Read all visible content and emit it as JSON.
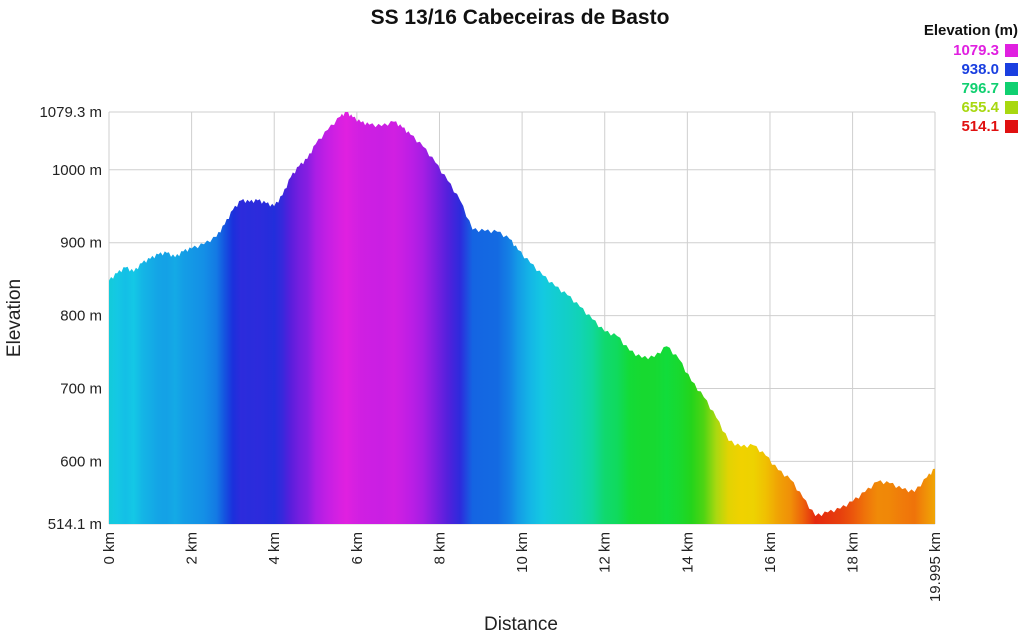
{
  "chart_data": {
    "type": "area",
    "title": "SS 13/16 Cabeceiras de Basto",
    "xlabel": "Distance",
    "ylabel": "Elevation",
    "xlim": [
      0,
      19.995
    ],
    "ylim": [
      514.1,
      1079.3
    ],
    "x_ticks": [
      0,
      2,
      4,
      6,
      8,
      10,
      12,
      14,
      16,
      18,
      19.995
    ],
    "x_tick_labels": [
      "0 km",
      "2 km",
      "4 km",
      "6 km",
      "8 km",
      "10 km",
      "12 km",
      "14 km",
      "16 km",
      "18 km",
      "19.995 km"
    ],
    "y_ticks": [
      514.1,
      600,
      700,
      800,
      900,
      1000,
      1079.3
    ],
    "y_tick_labels": [
      "514.1 m",
      "600 m",
      "700 m",
      "800 m",
      "900 m",
      "1000 m",
      "1079.3 m"
    ],
    "grid": true,
    "legend": {
      "title": "Elevation (m)",
      "placement": "top-right",
      "entries": [
        {
          "label": "1079.3",
          "color": "#e020e0"
        },
        {
          "label": "938.0",
          "color": "#1a3fe0"
        },
        {
          "label": "796.7",
          "color": "#10d070"
        },
        {
          "label": "655.4",
          "color": "#a8d810"
        },
        {
          "label": "514.1",
          "color": "#e01010"
        }
      ]
    },
    "series": [
      {
        "x": [
          0,
          0.2,
          0.4,
          0.6,
          0.8,
          1.0,
          1.2,
          1.4,
          1.6,
          1.8,
          2.0,
          2.3,
          2.6,
          2.8,
          3.0,
          3.2,
          3.4,
          3.6,
          3.8,
          4.0,
          4.2,
          4.4,
          4.6,
          4.8,
          5.0,
          5.3,
          5.6,
          5.75,
          5.9,
          6.1,
          6.3,
          6.6,
          6.9,
          7.1,
          7.3,
          7.6,
          7.9,
          8.2,
          8.5,
          8.8,
          9.1,
          9.4,
          9.7,
          9.9,
          10.2,
          10.5,
          10.8,
          11.1,
          11.4,
          11.7,
          12.0,
          12.3,
          12.6,
          12.9,
          13.2,
          13.5,
          13.8,
          14.1,
          14.4,
          14.7,
          15.0,
          15.3,
          15.6,
          15.9,
          16.2,
          16.5,
          16.8,
          17.1,
          17.4,
          17.7,
          18.0,
          18.3,
          18.6,
          18.9,
          19.2,
          19.5,
          19.8,
          19.995
        ],
        "y": [
          848,
          858,
          866,
          860,
          872,
          878,
          884,
          886,
          880,
          888,
          892,
          898,
          908,
          925,
          945,
          958,
          956,
          958,
          954,
          950,
          965,
          990,
          1005,
          1015,
          1035,
          1055,
          1073,
          1079.3,
          1072,
          1065,
          1062,
          1060,
          1066,
          1058,
          1048,
          1032,
          1010,
          985,
          958,
          918,
          916,
          915,
          905,
          890,
          872,
          855,
          840,
          828,
          812,
          795,
          778,
          772,
          752,
          742,
          743,
          758,
          740,
          710,
          688,
          660,
          628,
          620,
          622,
          608,
          588,
          575,
          550,
          525,
          530,
          535,
          545,
          558,
          572,
          570,
          562,
          558,
          578,
          590
        ]
      }
    ]
  }
}
